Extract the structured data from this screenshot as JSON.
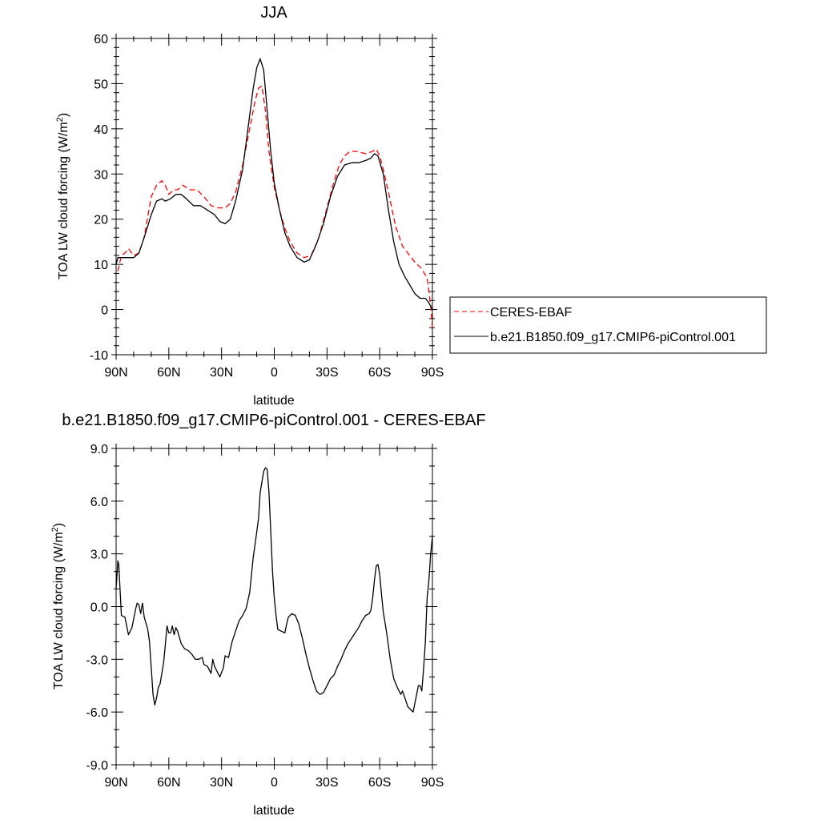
{
  "chart_data": [
    {
      "type": "line",
      "title": "JJA",
      "xlabel": "latitude",
      "ylabel": "TOA LW cloud forcing (W/m",
      "ylabel_sup": "2",
      "ylabel_tail": ")",
      "xlim": [
        90,
        -90
      ],
      "ylim": [
        -10,
        60
      ],
      "xticks": [
        90,
        60,
        30,
        0,
        -30,
        -60,
        -90
      ],
      "xtick_labels": [
        "90N",
        "60N",
        "30N",
        "0",
        "30S",
        "60S",
        "90S"
      ],
      "yticks": [
        -10,
        0,
        10,
        20,
        30,
        40,
        50,
        60
      ],
      "ytick_labels": [
        "-10",
        "0",
        "10",
        "20",
        "30",
        "40",
        "50",
        "60"
      ],
      "legend_position": "right",
      "series": [
        {
          "name": "CERES-EBAF",
          "color": "#ff0000",
          "dash": "dashed",
          "points": [
            [
              89,
              8.5
            ],
            [
              87,
              12
            ],
            [
              85,
              12.5
            ],
            [
              83,
              13.5
            ],
            [
              80,
              12
            ],
            [
              77,
              12.5
            ],
            [
              74,
              16
            ],
            [
              70,
              25
            ],
            [
              67,
              27.5
            ],
            [
              64,
              28.5
            ],
            [
              62,
              27.5
            ],
            [
              60,
              25.5
            ],
            [
              57,
              26.5
            ],
            [
              55,
              26.5
            ],
            [
              52,
              27.5
            ],
            [
              48,
              26.5
            ],
            [
              44,
              26.5
            ],
            [
              40,
              25
            ],
            [
              36,
              23
            ],
            [
              32,
              22.5
            ],
            [
              28,
              22.5
            ],
            [
              25,
              23.5
            ],
            [
              22,
              26
            ],
            [
              18,
              32
            ],
            [
              14,
              40
            ],
            [
              11,
              46
            ],
            [
              9,
              49
            ],
            [
              7,
              49.5
            ],
            [
              5,
              44
            ],
            [
              3,
              35
            ],
            [
              0,
              27
            ],
            [
              -3,
              22
            ],
            [
              -6,
              18
            ],
            [
              -9,
              15
            ],
            [
              -13,
              12.5
            ],
            [
              -17,
              11.5
            ],
            [
              -21,
              12
            ],
            [
              -25,
              15.5
            ],
            [
              -29,
              21
            ],
            [
              -33,
              27
            ],
            [
              -37,
              32
            ],
            [
              -40,
              34
            ],
            [
              -43,
              35
            ],
            [
              -47,
              35
            ],
            [
              -52,
              34.5
            ],
            [
              -56,
              35
            ],
            [
              -58,
              35.5
            ],
            [
              -60,
              34
            ],
            [
              -62,
              31
            ],
            [
              -65,
              26
            ],
            [
              -69,
              18.5
            ],
            [
              -73,
              14
            ],
            [
              -77,
              12
            ],
            [
              -80,
              10.5
            ],
            [
              -84,
              9
            ],
            [
              -87,
              7
            ],
            [
              -89,
              1
            ],
            [
              -90,
              -4
            ]
          ]
        },
        {
          "name": "b.e21.B1850.f09_g17.CMIP6-piControl.001",
          "color": "#000000",
          "dash": "solid",
          "points": [
            [
              90,
              10
            ],
            [
              89,
              11.5
            ],
            [
              86,
              11.5
            ],
            [
              83,
              11.5
            ],
            [
              80,
              11.5
            ],
            [
              77,
              12.5
            ],
            [
              74,
              16
            ],
            [
              70,
              21
            ],
            [
              67,
              24
            ],
            [
              64,
              24.5
            ],
            [
              62,
              24
            ],
            [
              59,
              24.5
            ],
            [
              56,
              25.5
            ],
            [
              53,
              25.5
            ],
            [
              50,
              24.5
            ],
            [
              46,
              23
            ],
            [
              42,
              23
            ],
            [
              38,
              22
            ],
            [
              34,
              21
            ],
            [
              31,
              19.5
            ],
            [
              28,
              19
            ],
            [
              25,
              20
            ],
            [
              22,
              24
            ],
            [
              18,
              31
            ],
            [
              15,
              40
            ],
            [
              12,
              49
            ],
            [
              10,
              53.5
            ],
            [
              8,
              55.5
            ],
            [
              6,
              53
            ],
            [
              4,
              44
            ],
            [
              2,
              35
            ],
            [
              0,
              28
            ],
            [
              -3,
              22
            ],
            [
              -6,
              17
            ],
            [
              -9,
              14
            ],
            [
              -13,
              11.5
            ],
            [
              -17,
              10.5
            ],
            [
              -20,
              11
            ],
            [
              -24,
              14.5
            ],
            [
              -28,
              19
            ],
            [
              -32,
              25
            ],
            [
              -36,
              29.5
            ],
            [
              -40,
              32
            ],
            [
              -44,
              32.5
            ],
            [
              -48,
              32.5
            ],
            [
              -52,
              33
            ],
            [
              -55,
              33.5
            ],
            [
              -57,
              34.5
            ],
            [
              -59,
              34
            ],
            [
              -62,
              30
            ],
            [
              -65,
              22
            ],
            [
              -68,
              15
            ],
            [
              -71,
              10
            ],
            [
              -74,
              7.5
            ],
            [
              -77,
              5.5
            ],
            [
              -80,
              3.5
            ],
            [
              -83,
              2.5
            ],
            [
              -86,
              2.5
            ],
            [
              -88,
              1.5
            ],
            [
              -90,
              0
            ]
          ]
        }
      ]
    },
    {
      "type": "line",
      "title": "b.e21.B1850.f09_g17.CMIP6-piControl.001 - CERES-EBAF",
      "xlabel": "latitude",
      "ylabel": "TOA LW cloud forcing (W/m",
      "ylabel_sup": "2",
      "ylabel_tail": ")",
      "xlim": [
        90,
        -90
      ],
      "ylim": [
        -9,
        9
      ],
      "xticks": [
        90,
        60,
        30,
        0,
        -30,
        -60,
        -90
      ],
      "xtick_labels": [
        "90N",
        "60N",
        "30N",
        "0",
        "30S",
        "60S",
        "90S"
      ],
      "yticks": [
        -9,
        -6,
        -3,
        0,
        3,
        6,
        9
      ],
      "ytick_labels": [
        "-9.0",
        "-6.0",
        "-3.0",
        "0.0",
        "3.0",
        "6.0",
        "9.0"
      ],
      "series": [
        {
          "color": "#000000",
          "dash": "solid",
          "points": [
            [
              90,
              1
            ],
            [
              89,
              2.6
            ],
            [
              88.5,
              2.4
            ],
            [
              87,
              -0.5
            ],
            [
              85,
              -0.6
            ],
            [
              83,
              -1.6
            ],
            [
              81,
              -1.2
            ],
            [
              79,
              -0.2
            ],
            [
              78,
              0.2
            ],
            [
              77,
              0.1
            ],
            [
              76,
              -0.4
            ],
            [
              75,
              0.2
            ],
            [
              74,
              -0.6
            ],
            [
              72,
              -1.3
            ],
            [
              71,
              -2
            ],
            [
              70,
              -3.5
            ],
            [
              69,
              -5
            ],
            [
              68,
              -5.6
            ],
            [
              67,
              -5.2
            ],
            [
              66,
              -4.6
            ],
            [
              65,
              -4.4
            ],
            [
              63,
              -3.2
            ],
            [
              62,
              -2.2
            ],
            [
              61,
              -1.1
            ],
            [
              60,
              -1.5
            ],
            [
              59,
              -1.5
            ],
            [
              58,
              -1.1
            ],
            [
              57,
              -1.6
            ],
            [
              56,
              -1.2
            ],
            [
              55,
              -1.4
            ],
            [
              53,
              -2.1
            ],
            [
              51,
              -2.4
            ],
            [
              49,
              -2.5
            ],
            [
              47,
              -2.7
            ],
            [
              45,
              -3
            ],
            [
              43,
              -3
            ],
            [
              41,
              -2.9
            ],
            [
              40,
              -3.3
            ],
            [
              38,
              -3.4
            ],
            [
              36,
              -3.8
            ],
            [
              35,
              -3
            ],
            [
              34,
              -3.4
            ],
            [
              33,
              -3.6
            ],
            [
              31,
              -4
            ],
            [
              29,
              -3.5
            ],
            [
              28,
              -2.8
            ],
            [
              26,
              -2.9
            ],
            [
              24,
              -2
            ],
            [
              22,
              -1.4
            ],
            [
              20,
              -0.8
            ],
            [
              18,
              -0.5
            ],
            [
              16,
              -0.1
            ],
            [
              14,
              0.8
            ],
            [
              12,
              2.8
            ],
            [
              11,
              3.5
            ],
            [
              9,
              5
            ],
            [
              8,
              6.5
            ],
            [
              6,
              7.7
            ],
            [
              5,
              7.9
            ],
            [
              4,
              7.8
            ],
            [
              3,
              6.5
            ],
            [
              2,
              4.3
            ],
            [
              1,
              2
            ],
            [
              0,
              0.5
            ],
            [
              -1,
              -0.5
            ],
            [
              -2,
              -1.3
            ],
            [
              -4,
              -1.4
            ],
            [
              -6,
              -1.5
            ],
            [
              -7,
              -1
            ],
            [
              -8,
              -0.6
            ],
            [
              -10,
              -0.4
            ],
            [
              -12,
              -0.5
            ],
            [
              -14,
              -1
            ],
            [
              -16,
              -1.8
            ],
            [
              -18,
              -2.7
            ],
            [
              -20,
              -3.5
            ],
            [
              -22,
              -4.2
            ],
            [
              -24,
              -4.8
            ],
            [
              -26,
              -5
            ],
            [
              -28,
              -4.9
            ],
            [
              -30,
              -4.5
            ],
            [
              -32,
              -4.1
            ],
            [
              -34,
              -3.9
            ],
            [
              -36,
              -3.4
            ],
            [
              -38,
              -3
            ],
            [
              -40,
              -2.5
            ],
            [
              -42,
              -2.1
            ],
            [
              -44,
              -1.8
            ],
            [
              -46,
              -1.5
            ],
            [
              -48,
              -1.2
            ],
            [
              -50,
              -0.8
            ],
            [
              -52,
              -0.5
            ],
            [
              -54,
              -0.4
            ],
            [
              -55,
              -0.2
            ],
            [
              -56,
              0.5
            ],
            [
              -57,
              1.5
            ],
            [
              -58,
              2.3
            ],
            [
              -59,
              2.4
            ],
            [
              -60,
              1.8
            ],
            [
              -61,
              0.7
            ],
            [
              -62,
              -0.3
            ],
            [
              -64,
              -1.5
            ],
            [
              -66,
              -3
            ],
            [
              -68,
              -4.1
            ],
            [
              -70,
              -4.6
            ],
            [
              -72,
              -5
            ],
            [
              -73,
              -4.8
            ],
            [
              -74,
              -5.1
            ],
            [
              -76,
              -5.7
            ],
            [
              -78,
              -5.9
            ],
            [
              -79,
              -6
            ],
            [
              -80,
              -5.5
            ],
            [
              -81,
              -5
            ],
            [
              -82,
              -4.5
            ],
            [
              -83,
              -4.5
            ],
            [
              -84,
              -4.8
            ],
            [
              -85,
              -3.5
            ],
            [
              -86,
              -2
            ],
            [
              -87,
              0.5
            ],
            [
              -88,
              1.5
            ],
            [
              -89,
              3
            ],
            [
              -90,
              4
            ]
          ]
        }
      ]
    }
  ]
}
